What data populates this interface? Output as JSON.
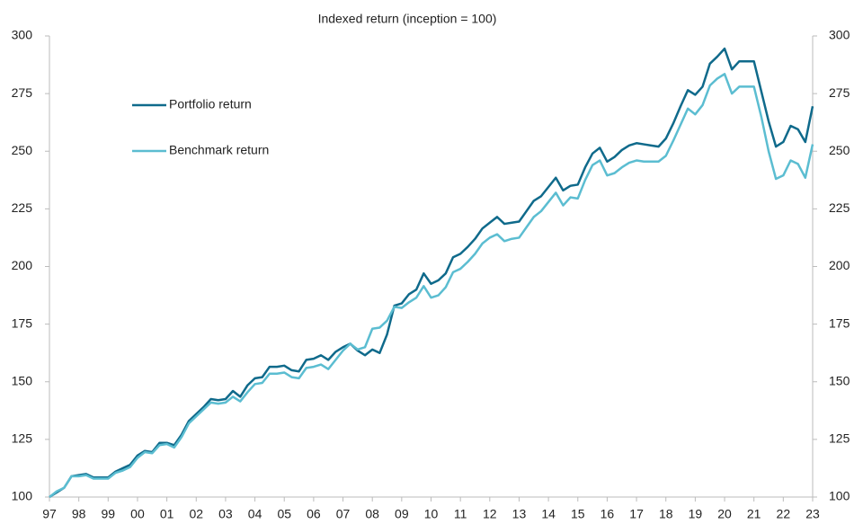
{
  "chart_data": {
    "type": "line",
    "title": "Indexed return (inception = 100)",
    "categories": [
      "97",
      null,
      null,
      null,
      "98",
      null,
      null,
      null,
      "99",
      null,
      null,
      null,
      "00",
      null,
      null,
      null,
      "01",
      null,
      null,
      null,
      "02",
      null,
      null,
      null,
      "03",
      null,
      null,
      null,
      "04",
      null,
      null,
      null,
      "05",
      null,
      null,
      null,
      "06",
      null,
      null,
      null,
      "07",
      null,
      null,
      null,
      "08",
      null,
      null,
      null,
      "09",
      null,
      null,
      null,
      "10",
      null,
      null,
      null,
      "11",
      null,
      null,
      null,
      "12",
      null,
      null,
      null,
      "13",
      null,
      null,
      null,
      "14",
      null,
      null,
      null,
      "15",
      null,
      null,
      null,
      "16",
      null,
      null,
      null,
      "17",
      null,
      null,
      null,
      "18",
      null,
      null,
      null,
      "19",
      null,
      null,
      null,
      "20",
      null,
      null,
      null,
      "21",
      null,
      null,
      null,
      "22",
      null,
      null,
      null,
      "23"
    ],
    "series": [
      {
        "name": "Portfolio return",
        "color": "#0f6a8b",
        "values": [
          100,
          102,
          104,
          109,
          109.5,
          110,
          108.5,
          108.5,
          108.5,
          111,
          112.5,
          114,
          118,
          120,
          119.5,
          123.5,
          123.5,
          122.5,
          127,
          133,
          136,
          139,
          142.5,
          142,
          142.5,
          146,
          143.5,
          148.5,
          151.5,
          152,
          156.5,
          156.5,
          157,
          155,
          154.5,
          159.5,
          160,
          161.5,
          159.5,
          163,
          165,
          166.5,
          163.5,
          161.5,
          164,
          162.5,
          170.5,
          183,
          184,
          188,
          190,
          197,
          192.5,
          194,
          197,
          204,
          205.5,
          208.5,
          212,
          216.5,
          219,
          221.5,
          218.5,
          219,
          219.5,
          224,
          228.5,
          230.5,
          234.5,
          238.5,
          233,
          235,
          235.5,
          243,
          249,
          251.5,
          245.5,
          247.5,
          250.5,
          252.5,
          253.5,
          253,
          252.5,
          252,
          255.5,
          262,
          269.5,
          276.5,
          274.5,
          278,
          288,
          291,
          294.5,
          285.5,
          289,
          289,
          289,
          276,
          263,
          252,
          254,
          261,
          259.5,
          254,
          269.5
        ]
      },
      {
        "name": "Benchmark return",
        "color": "#5bbdd1",
        "values": [
          100,
          102.5,
          104,
          109,
          109,
          109.5,
          108,
          108,
          108,
          110.5,
          111.5,
          113,
          117,
          119.5,
          119,
          122.5,
          123,
          121.5,
          126,
          132,
          135,
          138,
          141,
          140.5,
          141,
          143.5,
          141.5,
          145.5,
          149,
          149.5,
          153.5,
          153.5,
          154,
          152,
          151.5,
          156,
          156.5,
          157.5,
          155.5,
          159.5,
          163.5,
          166.5,
          164,
          165,
          173,
          173.5,
          176.5,
          182.5,
          182,
          184.5,
          186.5,
          191.5,
          186.5,
          187.5,
          191,
          197.5,
          199,
          202,
          205.5,
          210,
          212.5,
          214,
          211,
          212,
          212.5,
          217,
          221.5,
          224,
          228,
          232,
          226.5,
          230,
          229.5,
          237.5,
          244,
          246,
          239.5,
          240.5,
          243,
          245,
          246,
          245.5,
          245.5,
          245.5,
          248,
          254.5,
          261.5,
          268.5,
          266,
          270,
          278.5,
          281.5,
          283.5,
          275,
          278,
          278,
          278,
          265,
          250,
          238,
          239.5,
          246,
          244.5,
          238.5,
          253
        ]
      }
    ],
    "ylim": [
      100,
      300
    ],
    "yticks": [
      100,
      125,
      150,
      175,
      200,
      225,
      250,
      275,
      300
    ],
    "y2lim": [
      100,
      300
    ],
    "y2ticks": [
      100,
      125,
      150,
      175,
      200,
      225,
      250,
      275,
      300
    ],
    "grid": false
  }
}
